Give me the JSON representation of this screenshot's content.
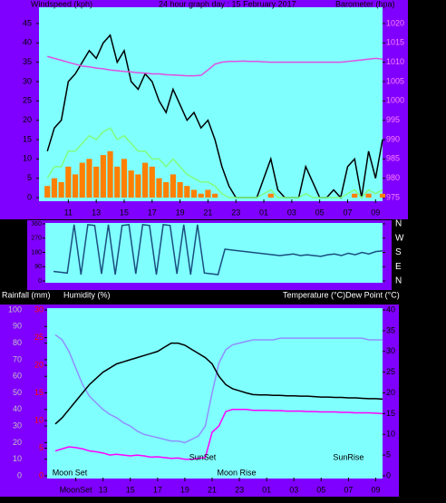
{
  "chart_data": [
    {
      "type": "line",
      "title": "24 hour graph day : 15 February 2017",
      "ylabel": "Windspeed (kph)",
      "y2label": "Barometer (hpa)",
      "x": [
        9.5,
        10,
        10.5,
        11,
        11.5,
        12,
        12.5,
        13,
        13.5,
        14,
        14.5,
        15,
        15.5,
        16,
        16.5,
        17,
        17.5,
        18,
        18.5,
        19,
        19.5,
        20,
        20.5,
        21,
        21.5,
        22,
        22.5,
        23,
        23.5,
        24,
        24.5,
        25,
        25.5,
        26,
        26.5,
        27,
        27.5,
        28,
        28.5,
        29,
        29.5,
        30,
        30.5,
        31,
        31.5,
        32,
        32.5,
        33,
        33.5
      ],
      "xlim": [
        8.9,
        33.5
      ],
      "xticks": [
        11,
        13,
        15,
        17,
        19,
        21,
        23,
        {
          "value": 25,
          "label": "01"
        },
        {
          "value": 27,
          "label": "03"
        },
        {
          "value": 29,
          "label": "05"
        },
        {
          "value": 31,
          "label": "07"
        },
        {
          "value": 33,
          "label": "09"
        }
      ],
      "ylim": [
        0,
        45
      ],
      "yticks": [
        0,
        5,
        10,
        15,
        20,
        25,
        30,
        35,
        40,
        45
      ],
      "y2lim": [
        975,
        1020
      ],
      "y2ticks": [
        975,
        980,
        985,
        990,
        995,
        1000,
        1005,
        1010,
        1015,
        1020
      ],
      "series": [
        {
          "type": "bar",
          "color": "#ff8000",
          "values": [
            3,
            5,
            4,
            8,
            6,
            9,
            10,
            8,
            11,
            12,
            8,
            10,
            7,
            6,
            9,
            8,
            5,
            4,
            6,
            4,
            3,
            2,
            1,
            2,
            1,
            0,
            0,
            0,
            0,
            0,
            0,
            0,
            1,
            0,
            0,
            0,
            0,
            0,
            0,
            0,
            0,
            0,
            0,
            0,
            1,
            0,
            1,
            0,
            1
          ]
        },
        {
          "color": "#000000",
          "values": [
            12,
            18,
            20,
            30,
            32,
            35,
            38,
            36,
            40,
            42,
            35,
            38,
            30,
            28,
            32,
            30,
            25,
            22,
            28,
            24,
            20,
            22,
            18,
            20,
            15,
            8,
            3,
            0,
            0,
            0,
            0,
            5,
            10,
            2,
            0,
            0,
            0,
            8,
            4,
            0,
            0,
            2,
            0,
            8,
            10,
            0,
            12,
            5,
            15
          ]
        },
        {
          "color": "#80ff80",
          "values": [
            5,
            8,
            8,
            12,
            12,
            14,
            16,
            15,
            17,
            18,
            15,
            16,
            14,
            12,
            12,
            10,
            10,
            8,
            10,
            8,
            6,
            5,
            4,
            4,
            3,
            1,
            0,
            0,
            0,
            0,
            0,
            1,
            2,
            0,
            0,
            0,
            0,
            1,
            0,
            0,
            0,
            0,
            0,
            1,
            2,
            0,
            2,
            1,
            2
          ]
        },
        {
          "color": "#e050e0",
          "axis": "y2",
          "values": [
            1011.5,
            1011,
            1010.5,
            1010,
            1009.5,
            1009,
            1008.8,
            1008.5,
            1008.3,
            1008,
            1007.8,
            1007.6,
            1007.5,
            1007.3,
            1007.2,
            1007,
            1007,
            1006.8,
            1006.7,
            1006.6,
            1006.5,
            1006.5,
            1006.6,
            1008,
            1009.5,
            1010,
            1010.2,
            1010.2,
            1010.3,
            1010.2,
            1010.2,
            1010.1,
            1010,
            1010,
            1010,
            1010,
            1010,
            1010,
            1010,
            1010,
            1010,
            1010,
            1010,
            1010.2,
            1010.4,
            1010.6,
            1010.8,
            1011,
            1010.8
          ]
        }
      ]
    },
    {
      "type": "line",
      "x": [
        9.5,
        10,
        10.5,
        11,
        11.5,
        12,
        12.5,
        13,
        13.5,
        14,
        14.5,
        15,
        15.5,
        16,
        16.5,
        17,
        17.5,
        18,
        18.5,
        19,
        19.5,
        20,
        20.5,
        21,
        21.5,
        22,
        22.5,
        23,
        23.5,
        24,
        24.5,
        25,
        25.5,
        26,
        26.5,
        27,
        27.5,
        28,
        28.5,
        29,
        29.5,
        30,
        30.5,
        31,
        31.5,
        32,
        32.5,
        33,
        33.5
      ],
      "xlim": [
        8.9,
        33.5
      ],
      "ylim": [
        0,
        360
      ],
      "yticks": [
        0,
        90,
        180,
        270,
        360
      ],
      "y2lim": [
        0,
        360
      ],
      "y2ticks": [
        {
          "value": 0,
          "label": "N"
        },
        {
          "value": 90,
          "label": "E"
        },
        {
          "value": 180,
          "label": "S"
        },
        {
          "value": 270,
          "label": "W"
        },
        {
          "value": 360,
          "label": "N"
        }
      ],
      "series": [
        {
          "color": "#1a5080",
          "values": [
            60,
            55,
            50,
            355,
            40,
            355,
            350,
            45,
            355,
            40,
            350,
            355,
            45,
            355,
            350,
            40,
            355,
            350,
            45,
            355,
            40,
            355,
            50,
            45,
            40,
            200,
            195,
            190,
            185,
            180,
            175,
            170,
            165,
            160,
            165,
            170,
            160,
            165,
            160,
            155,
            165,
            170,
            160,
            175,
            165,
            180,
            170,
            185,
            190
          ]
        }
      ]
    },
    {
      "type": "line",
      "y3label": "Rainfall (mm)",
      "ylabel": "Humidity (%)",
      "y2label": "Temperature (°C)Dew Point (°C)",
      "x": [
        9.5,
        10,
        10.5,
        11,
        11.5,
        12,
        12.5,
        13,
        13.5,
        14,
        14.5,
        15,
        15.5,
        16,
        16.5,
        17,
        17.5,
        18,
        18.5,
        19,
        19.5,
        20,
        20.5,
        21,
        21.5,
        22,
        22.5,
        23,
        23.5,
        24,
        24.5,
        25,
        25.5,
        26,
        26.5,
        27,
        27.5,
        28,
        28.5,
        29,
        29.5,
        30,
        30.5,
        31,
        31.5,
        32,
        32.5,
        33,
        33.5
      ],
      "xlim": [
        8.9,
        33.5
      ],
      "xticks": [
        {
          "value": 11,
          "label": "MoonSet"
        },
        13,
        15,
        17,
        19,
        21,
        23,
        {
          "value": 25,
          "label": "01"
        },
        {
          "value": 27,
          "label": "03"
        },
        {
          "value": 29,
          "label": "05"
        },
        {
          "value": 31,
          "label": "07"
        },
        {
          "value": 33,
          "label": "09"
        }
      ],
      "ylim": [
        0,
        100
      ],
      "yticks": [
        0,
        10,
        20,
        30,
        40,
        50,
        60,
        70,
        80,
        90,
        100
      ],
      "y2lim": [
        0,
        40
      ],
      "y2ticks": [
        0,
        5,
        10,
        15,
        20,
        25,
        30,
        35,
        40
      ],
      "y3lim": [
        0,
        30
      ],
      "y3ticks": [
        0,
        5,
        10,
        15,
        20,
        25,
        30
      ],
      "annotations": [
        {
          "text": "Moon Set",
          "x": 10.56
        },
        {
          "text": "SunSet",
          "x": 20.3
        },
        {
          "text": "Moon Rise",
          "x": 22.8
        },
        {
          "text": "SunRise",
          "x": 31
        }
      ],
      "series": [
        {
          "color": "#9090ff",
          "values": [
            85,
            82,
            75,
            65,
            55,
            48,
            44,
            40,
            37,
            35,
            32,
            30,
            27,
            25,
            24,
            23,
            22,
            21,
            21,
            20,
            22,
            24,
            30,
            50,
            68,
            76,
            79,
            80,
            81,
            82,
            82,
            82,
            82,
            83,
            83,
            83,
            83,
            83,
            83,
            83,
            83,
            83,
            83,
            83,
            83,
            83,
            82,
            82,
            82
          ]
        },
        {
          "color": "#000000",
          "axis": "y2",
          "values": [
            12.5,
            14,
            16,
            18,
            20,
            22,
            23.5,
            25,
            26,
            27,
            27.5,
            28,
            28.5,
            29,
            29.5,
            30,
            31,
            32,
            32,
            31.5,
            30.5,
            29.5,
            28.5,
            27,
            24,
            22,
            21,
            20.5,
            20,
            19.6,
            19.5,
            19.5,
            19.4,
            19.4,
            19.3,
            19.3,
            19.2,
            19.2,
            19.1,
            19,
            19,
            18.9,
            18.9,
            18.8,
            18.8,
            18.7,
            18.6,
            18.6,
            18.5
          ]
        },
        {
          "color": "#ff00ff",
          "axis": "y2",
          "values": [
            6,
            6.5,
            7,
            6.8,
            6.5,
            6,
            5.8,
            5.5,
            5,
            5.2,
            5,
            4.8,
            5,
            4.8,
            4.5,
            4.6,
            4.4,
            4.2,
            4.3,
            4,
            4,
            4.2,
            4.4,
            10.5,
            12,
            15.5,
            16,
            16,
            16,
            15.8,
            15.8,
            15.8,
            15.7,
            15.7,
            15.6,
            15.6,
            15.6,
            15.5,
            15.5,
            15.4,
            15.4,
            15.4,
            15.3,
            15.3,
            15.2,
            15.2,
            15.2,
            15.1,
            15
          ]
        }
      ]
    }
  ]
}
